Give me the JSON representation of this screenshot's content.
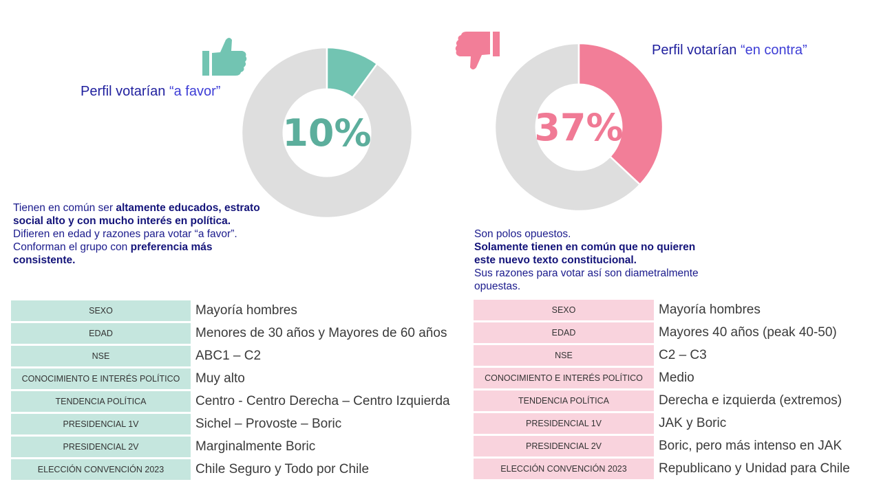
{
  "chart_data": [
    {
      "type": "pie",
      "variant": "donut",
      "title": "Perfil votarían “a favor”",
      "center_label": "10%",
      "slices": [
        {
          "value": 10,
          "color": "#72c4b2"
        },
        {
          "value": 90,
          "color": "#dedede"
        }
      ]
    },
    {
      "type": "pie",
      "variant": "donut",
      "title": "Perfil votarían “en contra”",
      "center_label": "37%",
      "slices": [
        {
          "value": 37,
          "color": "#f27e98"
        },
        {
          "value": 63,
          "color": "#dedede"
        }
      ]
    }
  ],
  "left": {
    "title_prefix": "Perfil votarían ",
    "title_quote": "“a favor”",
    "percent": "10%",
    "accent": "#72c4b2",
    "icon": "thumbs-up-icon",
    "desc": {
      "t1": "Tienen en común ser ",
      "b1": "altamente educados, estrato social alto y con mucho interés en política.",
      "t2": "Difieren en edad y razones para votar “a favor”.",
      "t3": "Conforman el grupo con ",
      "b2": "preferencia más consistente."
    },
    "rows": [
      {
        "label": "SEXO",
        "value": "Mayoría hombres"
      },
      {
        "label": "EDAD",
        "value": "Menores de 30 años y Mayores de 60 años"
      },
      {
        "label": "NSE",
        "value": "ABC1 – C2"
      },
      {
        "label": "CONOCIMIENTO E INTERÉS POLÍTICO",
        "value": "Muy alto"
      },
      {
        "label": "TENDENCIA POLÍTICA",
        "value": "Centro - Centro Derecha – Centro Izquierda"
      },
      {
        "label": "PRESIDENCIAL 1V",
        "value": "Sichel – Provoste – Boric"
      },
      {
        "label": "PRESIDENCIAL 2V",
        "value": "Marginalmente Boric"
      },
      {
        "label": "ELECCIÓN CONVENCIÓN 2023",
        "value": "Chile Seguro y Todo por Chile"
      }
    ]
  },
  "right": {
    "title_prefix": "Perfil votarían ",
    "title_quote": "“en contra”",
    "percent": "37%",
    "accent": "#f27e98",
    "icon": "thumbs-down-icon",
    "desc": {
      "t1": "Son polos opuestos.",
      "b1": "Solamente tienen en común que no quieren este nuevo texto constitucional.",
      "t2": "Sus razones para votar así son diametralmente opuestas."
    },
    "rows": [
      {
        "label": "SEXO",
        "value": "Mayoría hombres"
      },
      {
        "label": "EDAD",
        "value": "Mayores 40 años (peak 40-50)"
      },
      {
        "label": "NSE",
        "value": "C2 – C3"
      },
      {
        "label": "CONOCIMIENTO E INTERÉS POLÍTICO",
        "value": "Medio"
      },
      {
        "label": "TENDENCIA POLÍTICA",
        "value": "Derecha e izquierda (extremos)"
      },
      {
        "label": "PRESIDENCIAL 1V",
        "value": "JAK y Boric"
      },
      {
        "label": "PRESIDENCIAL 2V",
        "value": "Boric, pero más intenso en JAK"
      },
      {
        "label": "ELECCIÓN CONVENCIÓN 2023",
        "value": "Republicano y Unidad para Chile"
      }
    ]
  }
}
